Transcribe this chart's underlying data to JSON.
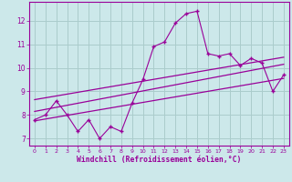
{
  "xlabel": "Windchill (Refroidissement éolien,°C)",
  "bg_color": "#cce8ea",
  "line_color": "#990099",
  "grid_color": "#aacccc",
  "x_data": [
    0,
    1,
    2,
    3,
    4,
    5,
    6,
    7,
    8,
    9,
    10,
    11,
    12,
    13,
    14,
    15,
    16,
    17,
    18,
    19,
    20,
    21,
    22,
    23
  ],
  "y_main": [
    7.8,
    8.0,
    8.6,
    8.0,
    7.3,
    7.8,
    7.0,
    7.5,
    7.3,
    8.5,
    9.5,
    10.9,
    11.1,
    11.9,
    12.3,
    12.4,
    10.6,
    10.5,
    10.6,
    10.1,
    10.4,
    10.2,
    9.0,
    9.7
  ],
  "ylim": [
    6.7,
    12.8
  ],
  "xlim": [
    -0.5,
    23.5
  ],
  "yticks": [
    7,
    8,
    9,
    10,
    11,
    12
  ],
  "xticks": [
    0,
    1,
    2,
    3,
    4,
    5,
    6,
    7,
    8,
    9,
    10,
    11,
    12,
    13,
    14,
    15,
    16,
    17,
    18,
    19,
    20,
    21,
    22,
    23
  ],
  "trend1_x": [
    0,
    23
  ],
  "trend1_y": [
    7.75,
    9.55
  ],
  "trend2_x": [
    0,
    23
  ],
  "trend2_y": [
    8.65,
    10.45
  ],
  "trend3_x": [
    0,
    23
  ],
  "trend3_y": [
    8.15,
    10.15
  ]
}
